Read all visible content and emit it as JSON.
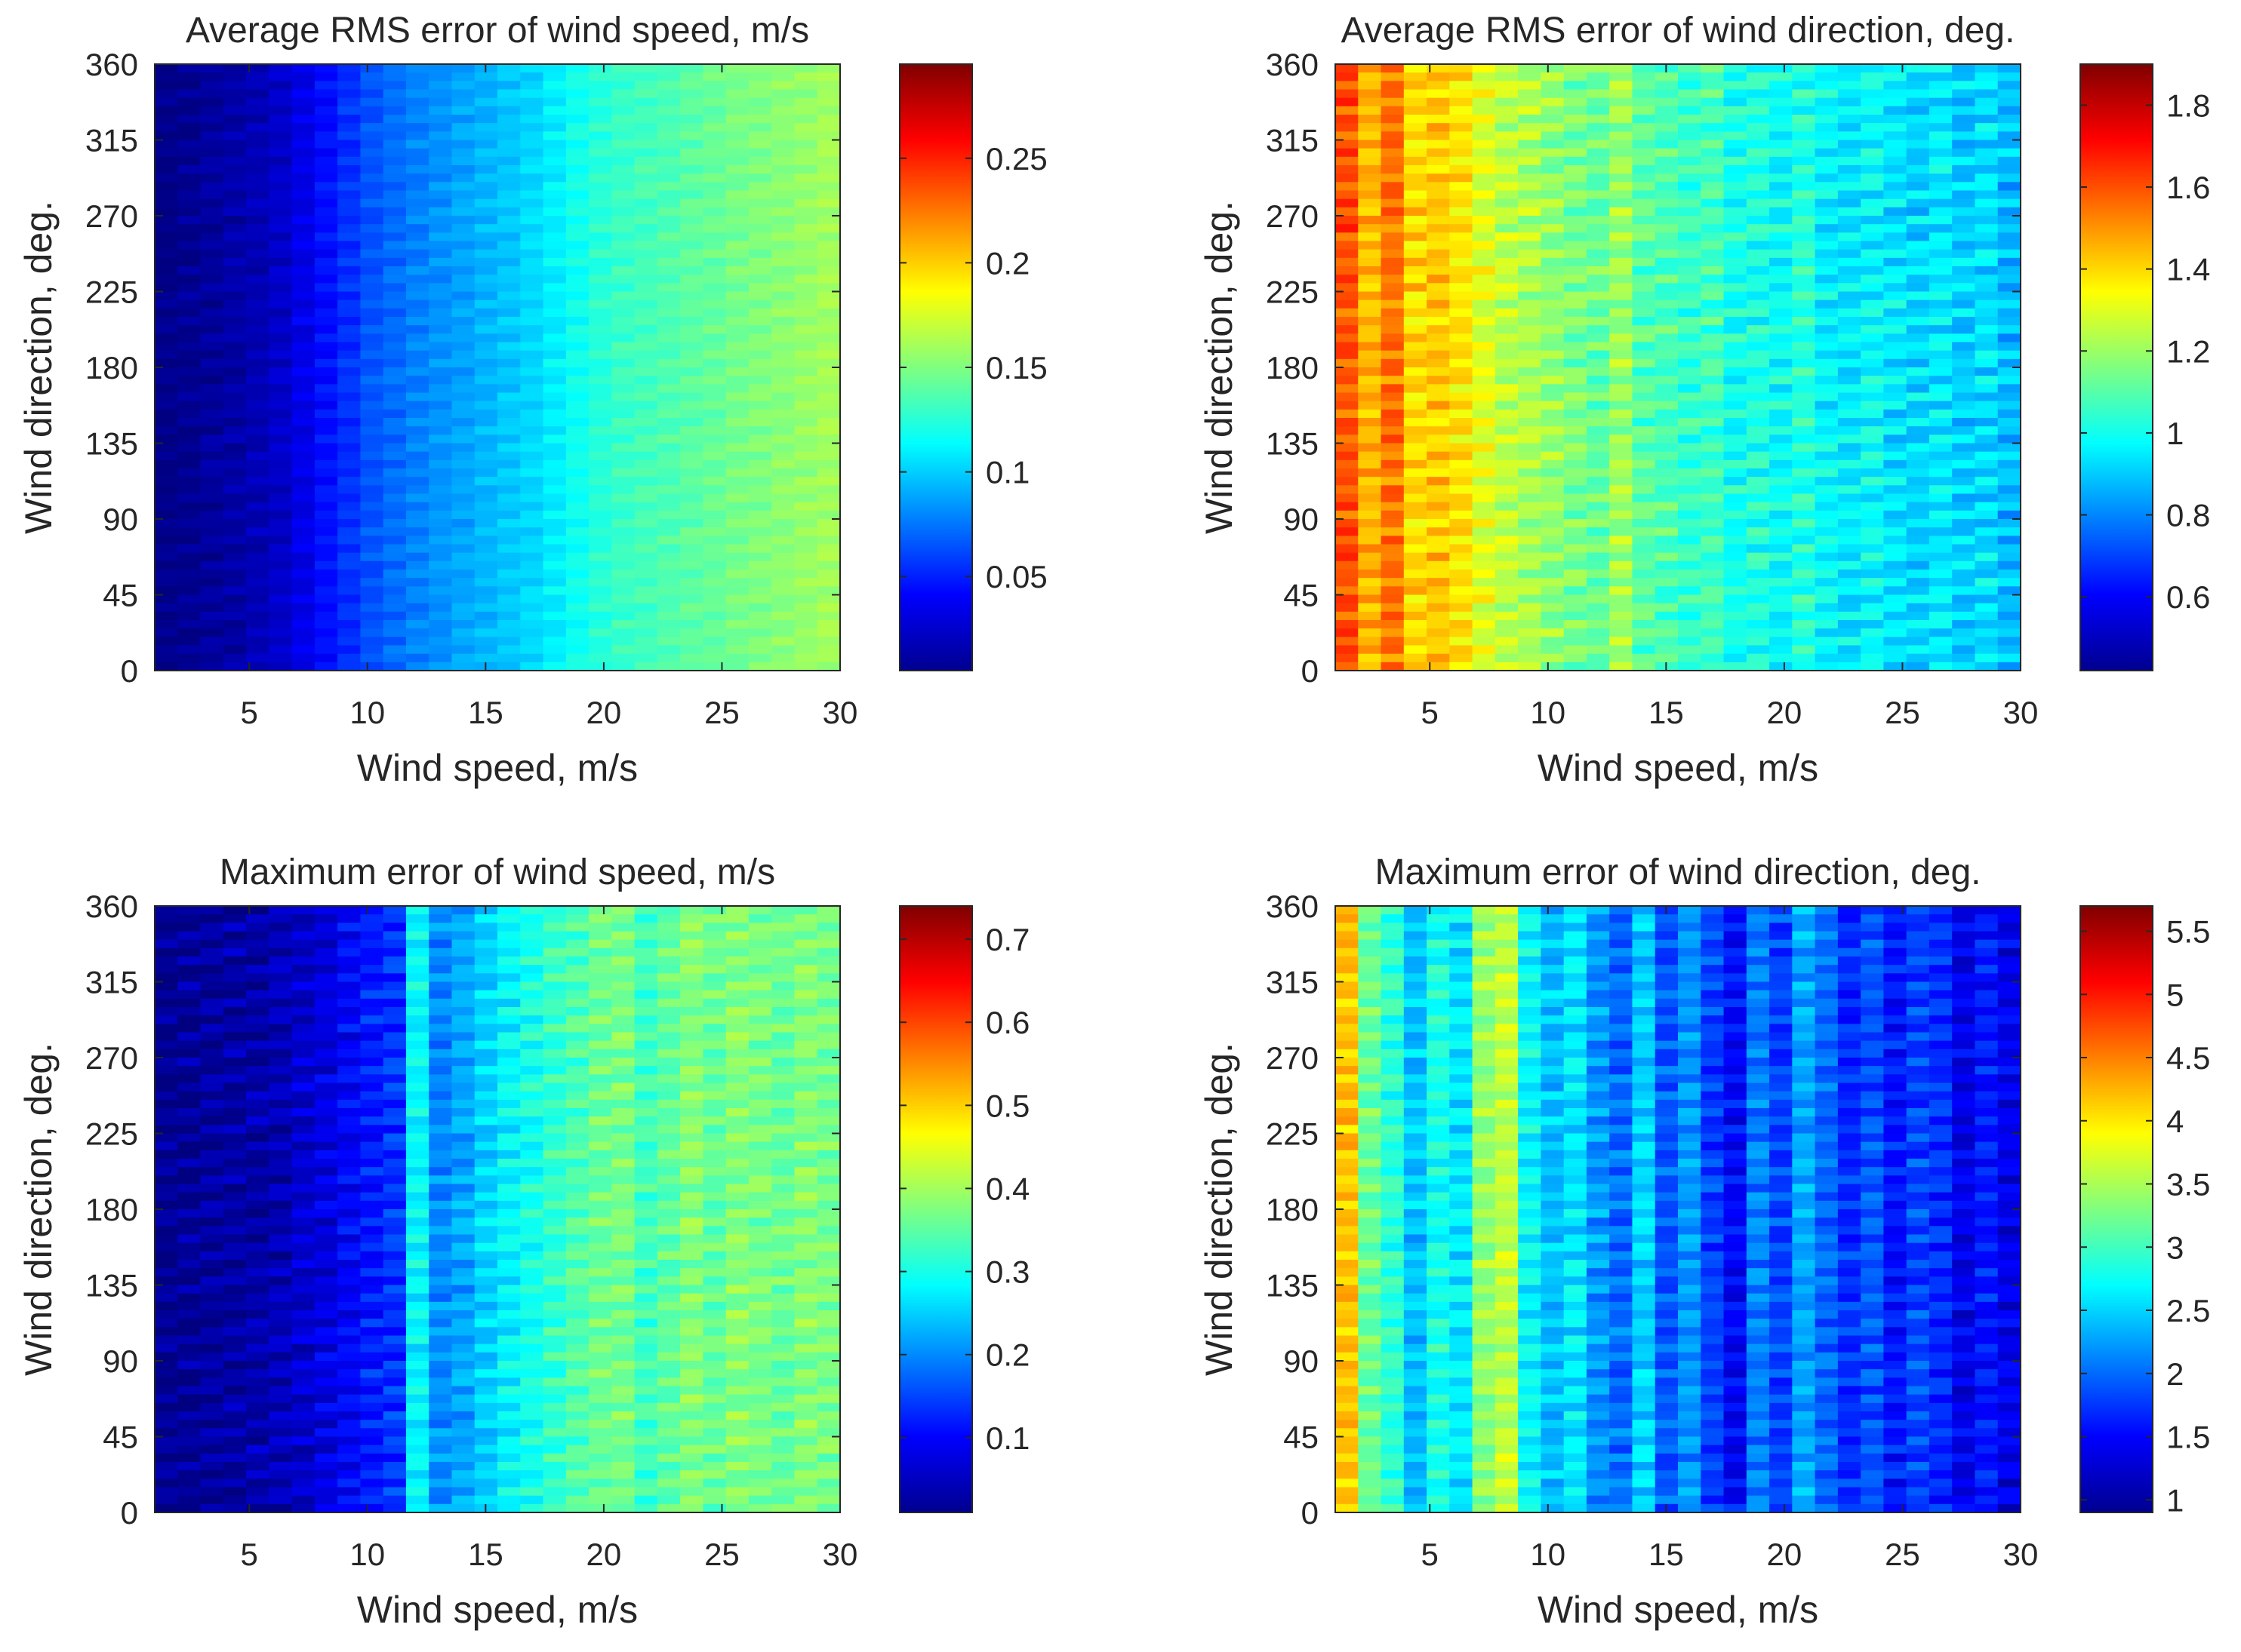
{
  "chart_data": [
    {
      "type": "heatmap",
      "title": "Average RMS error of wind speed, m/s",
      "xlabel": "Wind speed, m/s",
      "ylabel": "Wind direction, deg.",
      "xlim": [
        1,
        30
      ],
      "ylim": [
        0,
        360
      ],
      "xticks": [
        "5",
        "10",
        "15",
        "20",
        "25",
        "30"
      ],
      "xtick_values": [
        5,
        10,
        15,
        20,
        25,
        30
      ],
      "yticks": [
        "0",
        "45",
        "90",
        "135",
        "180",
        "225",
        "270",
        "315",
        "360"
      ],
      "ytick_values": [
        0,
        45,
        90,
        135,
        180,
        225,
        270,
        315,
        360
      ],
      "colormap": "jet",
      "clim": [
        0.005,
        0.295
      ],
      "colorbar_ticks": [
        "0.05",
        "0.1",
        "0.15",
        "0.2",
        "0.25"
      ],
      "colorbar_tick_values": [
        0.05,
        0.1,
        0.15,
        0.2,
        0.25
      ],
      "stripe_speeds": [
        1,
        2,
        3,
        4,
        5,
        6,
        7,
        8,
        9,
        10,
        11,
        12,
        13,
        14,
        15,
        16,
        17,
        18,
        19,
        20,
        21,
        22,
        23,
        24,
        25,
        26,
        27,
        28,
        29,
        30
      ],
      "stripe_values": [
        0.007,
        0.01,
        0.013,
        0.016,
        0.02,
        0.026,
        0.035,
        0.045,
        0.055,
        0.065,
        0.072,
        0.078,
        0.083,
        0.088,
        0.093,
        0.098,
        0.103,
        0.11,
        0.118,
        0.125,
        0.13,
        0.133,
        0.136,
        0.14,
        0.143,
        0.147,
        0.15,
        0.153,
        0.156,
        0.16
      ],
      "stripe_noise": 0.008
    },
    {
      "type": "heatmap",
      "title": "Average RMS error of wind direction, deg.",
      "xlabel": "Wind speed, m/s",
      "ylabel": "Wind direction, deg.",
      "xlim": [
        1,
        30
      ],
      "ylim": [
        0,
        360
      ],
      "xticks": [
        "5",
        "10",
        "15",
        "20",
        "25",
        "30"
      ],
      "xtick_values": [
        5,
        10,
        15,
        20,
        25,
        30
      ],
      "yticks": [
        "0",
        "45",
        "90",
        "135",
        "180",
        "225",
        "270",
        "315",
        "360"
      ],
      "ytick_values": [
        0,
        45,
        90,
        135,
        180,
        225,
        270,
        315,
        360
      ],
      "colormap": "jet",
      "clim": [
        0.42,
        1.9
      ],
      "colorbar_ticks": [
        "0.6",
        "0.8",
        "1",
        "1.2",
        "1.4",
        "1.6",
        "1.8"
      ],
      "colorbar_tick_values": [
        0.6,
        0.8,
        1.0,
        1.2,
        1.4,
        1.6,
        1.8
      ],
      "stripe_speeds": [
        1,
        2,
        3,
        4,
        5,
        6,
        7,
        8,
        9,
        10,
        11,
        12,
        13,
        14,
        15,
        16,
        17,
        18,
        19,
        20,
        21,
        22,
        23,
        24,
        25,
        26,
        27,
        28,
        29,
        30
      ],
      "stripe_values": [
        1.6,
        1.45,
        1.55,
        1.4,
        1.42,
        1.38,
        1.3,
        1.25,
        1.22,
        1.18,
        1.15,
        1.12,
        1.2,
        1.1,
        1.08,
        1.05,
        1.07,
        1.0,
        1.02,
        0.98,
        1.03,
        0.97,
        0.95,
        0.98,
        0.94,
        0.92,
        0.95,
        0.9,
        0.93,
        0.88
      ],
      "stripe_noise": 0.1
    },
    {
      "type": "heatmap",
      "title": "Maximum error of wind speed, m/s",
      "xlabel": "Wind speed, m/s",
      "ylabel": "Wind direction, deg.",
      "xlim": [
        1,
        30
      ],
      "ylim": [
        0,
        360
      ],
      "xticks": [
        "5",
        "10",
        "15",
        "20",
        "25",
        "30"
      ],
      "xtick_values": [
        5,
        10,
        15,
        20,
        25,
        30
      ],
      "yticks": [
        "0",
        "45",
        "90",
        "135",
        "180",
        "225",
        "270",
        "315",
        "360"
      ],
      "ytick_values": [
        0,
        45,
        90,
        135,
        180,
        225,
        270,
        315,
        360
      ],
      "colormap": "jet",
      "clim": [
        0.01,
        0.74
      ],
      "colorbar_ticks": [
        "0.1",
        "0.2",
        "0.3",
        "0.4",
        "0.5",
        "0.6",
        "0.7"
      ],
      "colorbar_tick_values": [
        0.1,
        0.2,
        0.3,
        0.4,
        0.5,
        0.6,
        0.7
      ],
      "stripe_speeds": [
        1,
        2,
        3,
        4,
        5,
        6,
        7,
        8,
        9,
        10,
        11,
        12,
        13,
        14,
        15,
        16,
        17,
        18,
        19,
        20,
        21,
        22,
        23,
        24,
        25,
        26,
        27,
        28,
        29,
        30
      ],
      "stripe_values": [
        0.02,
        0.025,
        0.03,
        0.035,
        0.04,
        0.05,
        0.065,
        0.08,
        0.1,
        0.12,
        0.14,
        0.28,
        0.2,
        0.22,
        0.25,
        0.28,
        0.3,
        0.32,
        0.34,
        0.36,
        0.37,
        0.33,
        0.35,
        0.38,
        0.36,
        0.38,
        0.37,
        0.36,
        0.38,
        0.37
      ],
      "stripe_noise": 0.04
    },
    {
      "type": "heatmap",
      "title": "Maximum error of wind direction, deg.",
      "xlabel": "Wind speed, m/s",
      "ylabel": "Wind direction, deg.",
      "xlim": [
        1,
        30
      ],
      "ylim": [
        0,
        360
      ],
      "xticks": [
        "5",
        "10",
        "15",
        "20",
        "25",
        "30"
      ],
      "xtick_values": [
        5,
        10,
        15,
        20,
        25,
        30
      ],
      "yticks": [
        "0",
        "45",
        "90",
        "135",
        "180",
        "225",
        "270",
        "315",
        "360"
      ],
      "ytick_values": [
        0,
        45,
        90,
        135,
        180,
        225,
        270,
        315,
        360
      ],
      "colormap": "jet",
      "clim": [
        0.9,
        5.7
      ],
      "colorbar_ticks": [
        "1",
        "1.5",
        "2",
        "2.5",
        "3",
        "3.5",
        "4",
        "4.5",
        "5",
        "5.5"
      ],
      "colorbar_tick_values": [
        1,
        1.5,
        2,
        2.5,
        3,
        3.5,
        4,
        4.5,
        5,
        5.5
      ],
      "stripe_speeds": [
        1,
        2,
        3,
        4,
        5,
        6,
        7,
        8,
        9,
        10,
        11,
        12,
        13,
        14,
        15,
        16,
        17,
        18,
        19,
        20,
        21,
        22,
        23,
        24,
        25,
        26,
        27,
        28,
        29,
        30
      ],
      "stripe_values": [
        4.2,
        3.2,
        2.9,
        2.4,
        2.8,
        2.6,
        3.4,
        3.6,
        2.7,
        2.4,
        2.6,
        2.2,
        2.0,
        2.5,
        1.9,
        2.2,
        1.8,
        1.5,
        2.1,
        1.8,
        2.3,
        2.0,
        1.7,
        1.9,
        1.6,
        1.8,
        1.7,
        1.4,
        1.6,
        1.4
      ],
      "stripe_noise": 0.3
    }
  ]
}
